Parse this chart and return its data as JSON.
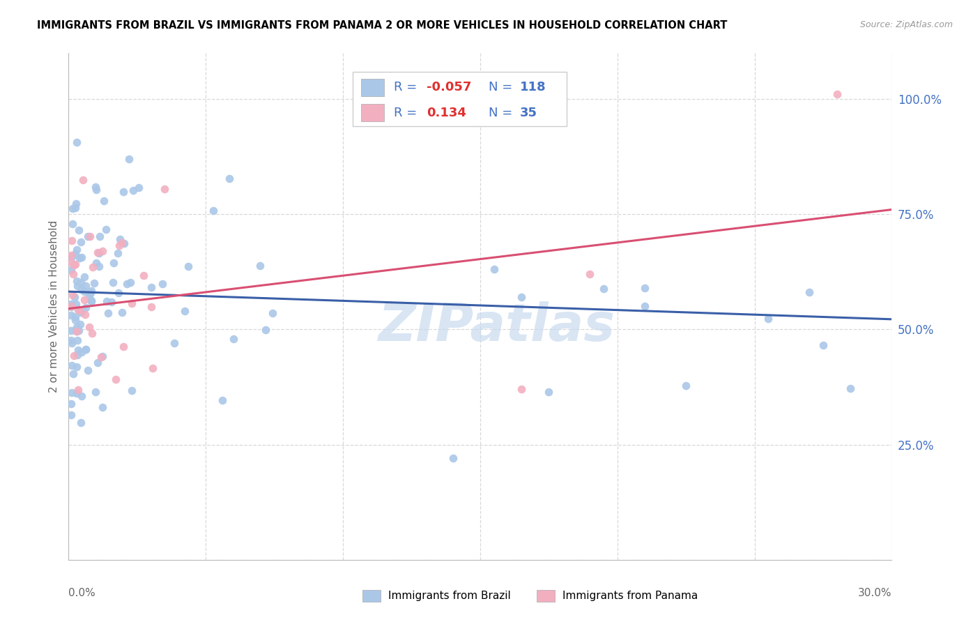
{
  "title": "IMMIGRANTS FROM BRAZIL VS IMMIGRANTS FROM PANAMA 2 OR MORE VEHICLES IN HOUSEHOLD CORRELATION CHART",
  "source": "Source: ZipAtlas.com",
  "ylabel": "2 or more Vehicles in Household",
  "brazil_R": -0.057,
  "brazil_N": 118,
  "panama_R": 0.134,
  "panama_N": 35,
  "brazil_color": "#aac7e8",
  "panama_color": "#f2afc0",
  "brazil_line_color": "#3a5fa8",
  "panama_line_color": "#d94f72",
  "axis_label_color": "#4472c4",
  "watermark": "ZIPatlas",
  "watermark_color": "#c5d8ee",
  "grid_color": "#d8d8d8",
  "xmin": 0.0,
  "xmax": 0.3,
  "ymin": 0.0,
  "ymax": 1.1,
  "brazil_line_y0": 0.582,
  "brazil_line_y1": 0.522,
  "panama_line_y0": 0.545,
  "panama_line_y1": 0.76,
  "legend_brazil_label": "Immigrants from Brazil",
  "legend_panama_label": "Immigrants from Panama",
  "xtick_left_label": "0.0%",
  "xtick_right_label": "30.0%",
  "ytick_labels": [
    "25.0%",
    "50.0%",
    "75.0%",
    "100.0%"
  ],
  "ytick_vals": [
    0.25,
    0.5,
    0.75,
    1.0
  ]
}
